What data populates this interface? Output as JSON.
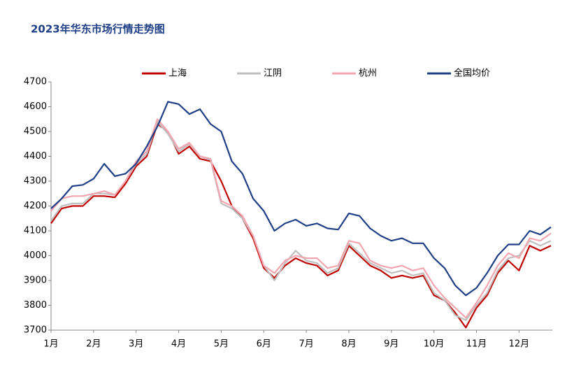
{
  "chart_data": {
    "type": "line",
    "title": "2023年华东市场行情走势图",
    "categories": [
      "1月",
      null,
      null,
      null,
      "2月",
      null,
      null,
      null,
      "3月",
      null,
      null,
      null,
      "4月",
      null,
      null,
      null,
      "5月",
      null,
      null,
      null,
      "6月",
      null,
      null,
      null,
      "7月",
      null,
      null,
      null,
      "8月",
      null,
      null,
      null,
      "9月",
      null,
      null,
      null,
      "10月",
      null,
      null,
      null,
      "11月",
      null,
      null,
      null,
      "12月",
      null,
      null,
      null
    ],
    "ylim": [
      3700,
      4700
    ],
    "yticks": [
      3700,
      3800,
      3900,
      4000,
      4100,
      4200,
      4300,
      4400,
      4500,
      4600,
      4700
    ],
    "grid": false,
    "legend": "top",
    "series": [
      {
        "name": "上海",
        "color": "#c00000",
        "values": [
          4130,
          4190,
          4200,
          4200,
          4240,
          4240,
          4235,
          4290,
          4360,
          4400,
          4530,
          4500,
          4410,
          4440,
          4390,
          4380,
          4300,
          4200,
          4150,
          4070,
          3950,
          3910,
          3960,
          3990,
          3970,
          3960,
          3920,
          3940,
          4040,
          4000,
          3960,
          3940,
          3910,
          3920,
          3910,
          3920,
          3840,
          3820,
          3770,
          3710,
          3790,
          3840,
          3930,
          3980,
          3940,
          4040,
          4020,
          4040
        ]
      },
      {
        "name": "江阴",
        "color": "#bfbfbf",
        "values": [
          4140,
          4200,
          4210,
          4210,
          4250,
          4250,
          4245,
          4300,
          4370,
          4410,
          4540,
          4490,
          4420,
          4450,
          4400,
          4385,
          4210,
          4190,
          4150,
          4080,
          3960,
          3900,
          3970,
          4020,
          3980,
          3970,
          3930,
          3950,
          4050,
          4010,
          3970,
          3950,
          3930,
          3940,
          3920,
          3930,
          3850,
          3820,
          3760,
          3740,
          3800,
          3850,
          3940,
          3990,
          4000,
          4060,
          4040,
          4060
        ]
      },
      {
        "name": "杭州",
        "color": "#f4a6b0",
        "values": [
          4180,
          4230,
          4240,
          4240,
          4250,
          4260,
          4245,
          4300,
          4380,
          4420,
          4550,
          4500,
          4430,
          4455,
          4400,
          4390,
          4220,
          4200,
          4160,
          4080,
          3960,
          3930,
          3980,
          4000,
          3990,
          3990,
          3950,
          3960,
          4060,
          4050,
          3980,
          3960,
          3950,
          3960,
          3940,
          3950,
          3880,
          3830,
          3790,
          3750,
          3810,
          3880,
          3960,
          4010,
          3990,
          4070,
          4060,
          4090
        ]
      },
      {
        "name": "全国均价",
        "color": "#1f3f87",
        "values": [
          4190,
          4230,
          4280,
          4285,
          4310,
          4370,
          4320,
          4330,
          4370,
          4440,
          4520,
          4620,
          4610,
          4570,
          4590,
          4530,
          4500,
          4380,
          4330,
          4230,
          4180,
          4100,
          4130,
          4145,
          4120,
          4130,
          4110,
          4105,
          4170,
          4160,
          4110,
          4080,
          4060,
          4070,
          4050,
          4050,
          3990,
          3950,
          3880,
          3840,
          3870,
          3930,
          4000,
          4045,
          4045,
          4100,
          4085,
          4115
        ]
      }
    ]
  }
}
